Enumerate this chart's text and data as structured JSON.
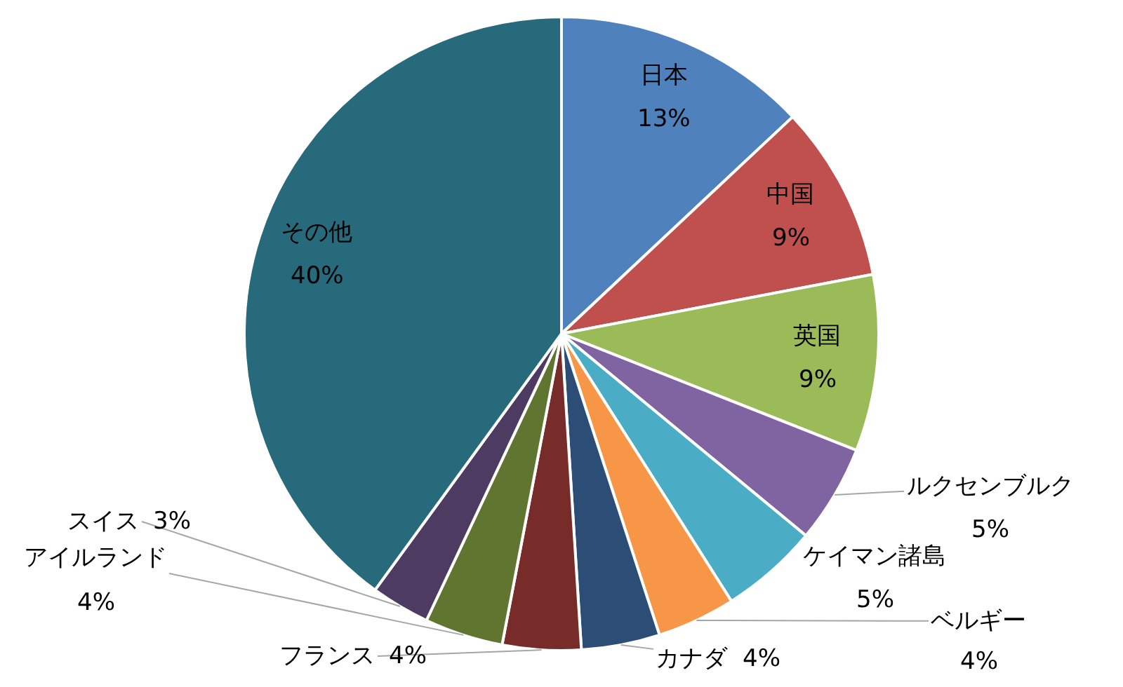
{
  "chart_data": {
    "type": "pie",
    "categories": [
      "日本",
      "中国",
      "英国",
      "ルクセンブルク",
      "ケイマン諸島",
      "ベルギー",
      "カナダ",
      "フランス",
      "アイルランド",
      "スイス",
      "その他"
    ],
    "values": [
      13,
      9,
      9,
      5,
      5,
      4,
      4,
      4,
      4,
      3,
      40
    ],
    "value_labels": [
      "13%",
      "9%",
      "9%",
      "5%",
      "5%",
      "4%",
      "4%",
      "4%",
      "4%",
      "3%",
      "40%"
    ],
    "colors": [
      "#4f81bd",
      "#c0504d",
      "#9bbb59",
      "#8064a2",
      "#4bacc6",
      "#f79646",
      "#2c4d75",
      "#772c2a",
      "#5f7530",
      "#4d3b62",
      "#276a7c"
    ]
  }
}
